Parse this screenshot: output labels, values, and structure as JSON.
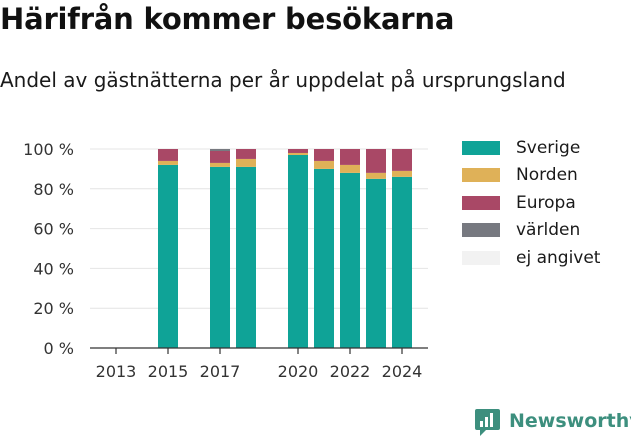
{
  "header": {
    "title": "Härifrån kommer besökarna",
    "subtitle": "Andel av gästnätterna per år uppdelat på ursprungsland"
  },
  "brand": {
    "name": "Newsworthy",
    "logo_icon": "newsworthy-chart-logo-icon",
    "color": "#3d8f7e"
  },
  "chart_data": {
    "type": "bar",
    "stacked": true,
    "x": [
      2013,
      2014,
      2015,
      2016,
      2017,
      2018,
      2019,
      2020,
      2021,
      2022,
      2023,
      2024
    ],
    "x_tick_labels": [
      "2013",
      "2015",
      "2017",
      "2020",
      "2022",
      "2024"
    ],
    "x_tick_values": [
      2013,
      2015,
      2017,
      2020,
      2022,
      2024
    ],
    "y_tick_labels": [
      "0 %",
      "20 %",
      "40 %",
      "60 %",
      "80 %",
      "100 %"
    ],
    "y_tick_values": [
      0,
      20,
      40,
      60,
      80,
      100
    ],
    "ylim": [
      0,
      100
    ],
    "grid": true,
    "legend_position": "right",
    "series": [
      {
        "name": "Sverige",
        "color": "#0fa397",
        "values": [
          null,
          null,
          92,
          null,
          91,
          91,
          null,
          97,
          90,
          88,
          85,
          86
        ]
      },
      {
        "name": "Norden",
        "color": "#dfb158",
        "values": [
          null,
          null,
          2,
          null,
          2,
          4,
          null,
          1,
          4,
          4,
          3,
          3
        ]
      },
      {
        "name": "Europa",
        "color": "#a94866",
        "values": [
          null,
          null,
          6,
          null,
          6,
          5,
          null,
          2,
          6,
          8,
          12,
          11
        ]
      },
      {
        "name": "världen",
        "color": "#777980",
        "values": [
          null,
          null,
          0,
          null,
          1,
          0,
          null,
          0,
          0,
          0,
          0,
          0
        ]
      },
      {
        "name": "ej angivet",
        "color": "#f2f2f2",
        "values": [
          null,
          null,
          0,
          null,
          0,
          0,
          null,
          0,
          0,
          0,
          0,
          0
        ]
      }
    ]
  }
}
